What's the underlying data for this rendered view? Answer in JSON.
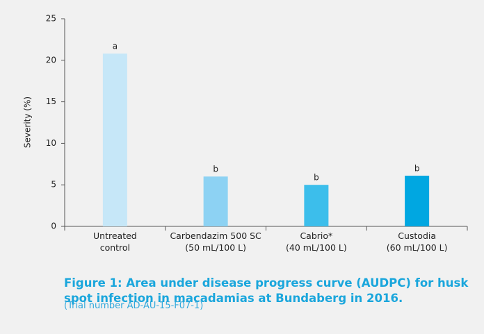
{
  "chart_data": {
    "type": "bar",
    "categories": [
      "Untreated\ncontrol",
      "Carbendazim 500 SC\n(50 mL/100 L)",
      "Cabrio*\n(40 mL/100 L)",
      "Custodia\n(60 mL/100 L)"
    ],
    "values": [
      20.8,
      6.0,
      5.0,
      6.1
    ],
    "annotations": [
      "a",
      "b",
      "b",
      "b"
    ],
    "colors": [
      "#c6e7f8",
      "#8dd2f3",
      "#3cbeeb",
      "#00a7e1"
    ],
    "ylabel": "Severity (%)",
    "ylim": [
      0,
      25
    ],
    "yticks": [
      0,
      5,
      10,
      15,
      20,
      25
    ],
    "caption": "Figure 1: Area under disease progress curve (AUDPC) for husk spot infection in macadamias at Bundaberg in 2016.",
    "note": "(Trial number AD-AU-15-F07-1)"
  }
}
